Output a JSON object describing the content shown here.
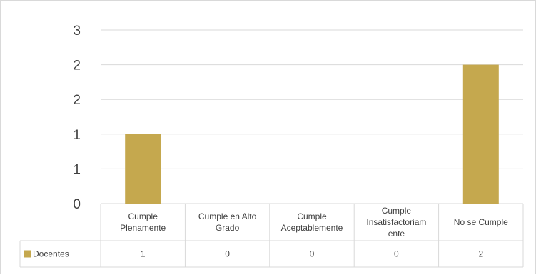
{
  "chart_data": {
    "type": "bar",
    "title": "",
    "xlabel": "",
    "ylabel": "",
    "categories": [
      [
        "Cumple",
        "Plenamente"
      ],
      [
        "Cumple en Alto",
        "Grado"
      ],
      [
        "Cumple",
        "Aceptablemente"
      ],
      [
        "Cumple",
        "Insatisfactoriam",
        "ente"
      ],
      [
        "No se Cumple"
      ]
    ],
    "y_tick_labels": [
      "0",
      "1",
      "1",
      "2",
      "2",
      "3"
    ],
    "ylim": [
      0,
      2.5
    ],
    "grid": true,
    "legend": "data-table",
    "series": [
      {
        "name": "Docentes",
        "color": "#c5a84e",
        "values": [
          1,
          0,
          0,
          0,
          2
        ],
        "table_values": [
          "1",
          "0",
          "0",
          "0",
          "2"
        ]
      }
    ]
  }
}
